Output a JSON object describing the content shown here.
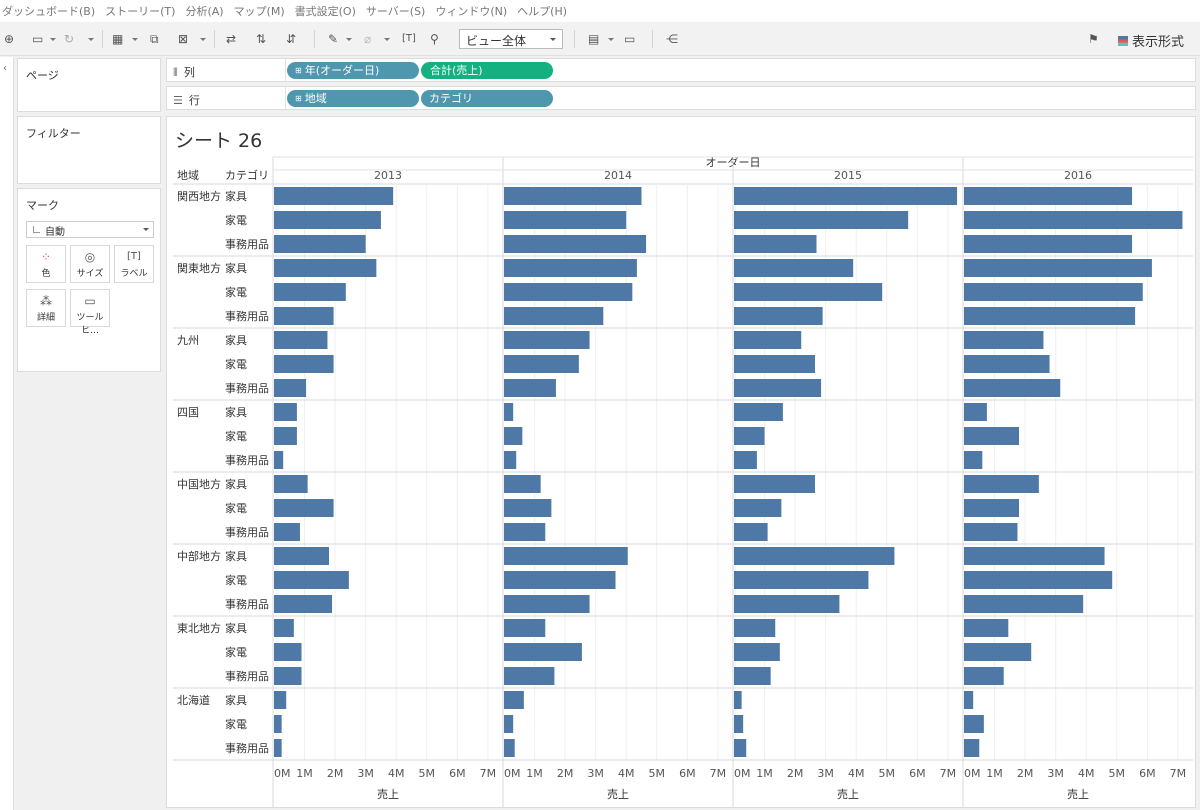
{
  "menu": [
    "ダッシュボード(B)",
    "ストーリー(T)",
    "分析(A)",
    "マップ(M)",
    "書式設定(O)",
    "サーバー(S)",
    "ウィンドウ(N)",
    "ヘルプ(H)"
  ],
  "toolbar": {
    "view_select": "ビュー全体",
    "show_me": "表示形式"
  },
  "panels": {
    "pages": "ページ",
    "filters": "フィルター",
    "marks": "マーク"
  },
  "marks_card": {
    "mark_type": "自動",
    "buttons": [
      "色",
      "サイズ",
      "ラベル",
      "詳細",
      "ツールヒ…"
    ]
  },
  "shelves": {
    "columns_label": "列",
    "rows_label": "行",
    "columns_pills": [
      "年(オーダー日)",
      "合計(売上)"
    ],
    "rows_pills": [
      "地域",
      "カテゴリ"
    ]
  },
  "sheet_title": "シート 26",
  "chart_data": {
    "type": "bar",
    "orientation": "horizontal",
    "column_header": "オーダー日",
    "row_headers": [
      "地域",
      "カテゴリ"
    ],
    "years": [
      "2013",
      "2014",
      "2015",
      "2016"
    ],
    "regions": [
      "関西地方",
      "関東地方",
      "九州",
      "四国",
      "中国地方",
      "中部地方",
      "東北地方",
      "北海道"
    ],
    "categories": [
      "家具",
      "家電",
      "事務用品"
    ],
    "xlabel": "売上",
    "xlim": [
      0,
      7200000
    ],
    "ticks": [
      "0M",
      "1M",
      "2M",
      "3M",
      "4M",
      "5M",
      "6M",
      "7M"
    ],
    "tick_values": [
      0,
      1000000,
      2000000,
      3000000,
      4000000,
      5000000,
      6000000,
      7000000
    ],
    "color": "#4e79a7",
    "values": {
      "関西地方": {
        "家具": [
          3.9,
          4.5,
          7.3,
          5.5
        ],
        "家電": [
          3.5,
          4.0,
          5.7,
          7.15
        ],
        "事務用品": [
          3.0,
          4.65,
          2.7,
          5.5
        ]
      },
      "関東地方": {
        "家具": [
          3.35,
          4.35,
          3.9,
          6.15
        ],
        "家電": [
          2.35,
          4.2,
          4.85,
          5.85
        ],
        "事務用品": [
          1.95,
          3.25,
          2.9,
          5.6
        ]
      },
      "九州": {
        "家具": [
          1.75,
          2.8,
          2.2,
          2.6
        ],
        "家電": [
          1.95,
          2.45,
          2.65,
          2.8
        ],
        "事務用品": [
          1.05,
          1.7,
          2.85,
          3.15
        ]
      },
      "四国": {
        "家具": [
          0.75,
          0.3,
          1.6,
          0.75
        ],
        "家電": [
          0.75,
          0.6,
          1.0,
          1.8
        ],
        "事務用品": [
          0.3,
          0.4,
          0.75,
          0.6
        ]
      },
      "中国地方": {
        "家具": [
          1.1,
          1.2,
          2.65,
          2.45
        ],
        "家電": [
          1.95,
          1.55,
          1.55,
          1.8
        ],
        "事務用品": [
          0.85,
          1.35,
          1.1,
          1.75
        ]
      },
      "中部地方": {
        "家具": [
          1.8,
          4.05,
          5.25,
          4.6
        ],
        "家電": [
          2.45,
          3.65,
          4.4,
          4.85
        ],
        "事務用品": [
          1.9,
          2.8,
          3.45,
          3.9
        ]
      },
      "東北地方": {
        "家具": [
          0.65,
          1.35,
          1.35,
          1.45
        ],
        "家電": [
          0.9,
          2.55,
          1.5,
          2.2
        ],
        "事務用品": [
          0.9,
          1.65,
          1.2,
          1.3
        ]
      },
      "北海道": {
        "家具": [
          0.4,
          0.65,
          0.25,
          0.3
        ],
        "家電": [
          0.25,
          0.3,
          0.3,
          0.65
        ],
        "事務用品": [
          0.25,
          0.35,
          0.4,
          0.5
        ]
      }
    },
    "value_unit": "M"
  }
}
